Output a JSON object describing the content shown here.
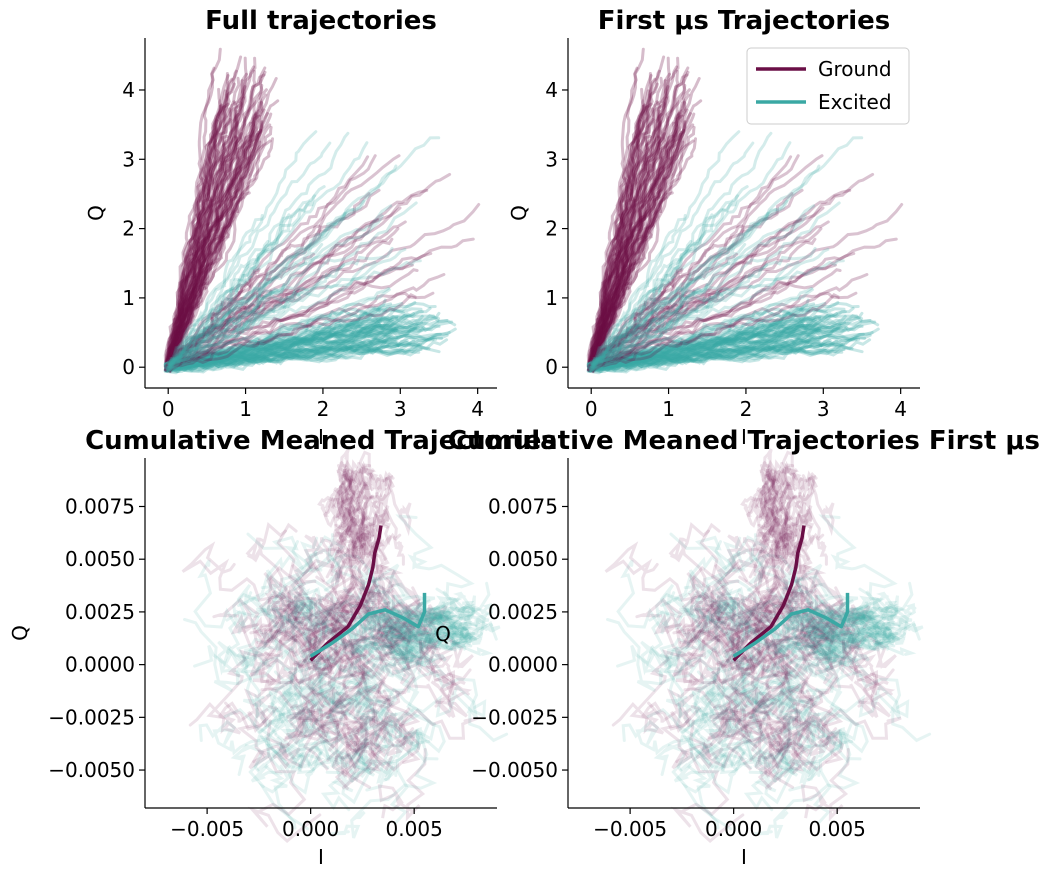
{
  "colors": {
    "ground": "#6a0f46",
    "excited": "#3aa8a4"
  },
  "legend": [
    {
      "label": "Ground",
      "color": "#6a0f46"
    },
    {
      "label": "Excited",
      "color": "#3aa8a4"
    }
  ],
  "chart_data": [
    {
      "type": "line",
      "title": "Full trajectories",
      "xlabel": "I",
      "ylabel": "Q",
      "xlim": [
        -0.3,
        4.25
      ],
      "ylim": [
        -0.3,
        4.75
      ],
      "xticks": [
        0,
        1,
        2,
        3,
        4
      ],
      "yticks": [
        0,
        1,
        2,
        3,
        4
      ],
      "xtick_labels": [
        "0",
        "1",
        "2",
        "3",
        "4"
      ],
      "ytick_labels": [
        "0",
        "1",
        "2",
        "3",
        "4"
      ],
      "grid": false,
      "series": [
        {
          "group": "ground_bundle",
          "description_free": true,
          "approx_endpoints_range": {
            "i": [
              0.6,
              1.4
            ],
            "q": [
              3.5,
              4.5
            ]
          }
        },
        {
          "group": "excited_bundle",
          "approx_endpoints_range": {
            "i": [
              2.8,
              3.7
            ],
            "q": [
              0.3,
              1.0
            ]
          }
        }
      ]
    },
    {
      "type": "line",
      "title": "First μs Trajectories",
      "xlabel": "I",
      "ylabel": "Q",
      "xlim": [
        -0.3,
        4.25
      ],
      "ylim": [
        -0.3,
        4.75
      ],
      "xticks": [
        0,
        1,
        2,
        3,
        4
      ],
      "yticks": [
        0,
        1,
        2,
        3,
        4
      ],
      "xtick_labels": [
        "0",
        "1",
        "2",
        "3",
        "4"
      ],
      "ytick_labels": [
        "0",
        "1",
        "2",
        "3",
        "4"
      ],
      "grid": false,
      "legend_placement": "top-right"
    },
    {
      "type": "line",
      "title": "Cumulative Meaned Trajectories",
      "xlabel": "I",
      "ylabel": "Q",
      "xlim": [
        -0.008,
        0.009
      ],
      "ylim": [
        -0.0068,
        0.0098
      ],
      "xticks": [
        -0.005,
        0.0,
        0.005
      ],
      "yticks": [
        -0.005,
        -0.0025,
        0.0,
        0.0025,
        0.005,
        0.0075
      ],
      "xtick_labels": [
        "−0.005",
        "0.000",
        "0.005"
      ],
      "ytick_labels": [
        "−0.0050",
        "−0.0025",
        "0.0000",
        "0.0025",
        "0.0050",
        "0.0075"
      ],
      "grid": false,
      "mean_ground": {
        "i": [
          0.0,
          0.0008,
          0.0018,
          0.0024,
          0.0028,
          0.003,
          0.0031,
          0.0033,
          0.0034
        ],
        "q": [
          0.0002,
          0.001,
          0.0018,
          0.0028,
          0.0038,
          0.0046,
          0.0053,
          0.006,
          0.0066
        ]
      },
      "mean_excited": {
        "i": [
          0.0,
          0.001,
          0.002,
          0.0028,
          0.0036,
          0.0045,
          0.0052,
          0.0055,
          0.0055
        ],
        "q": [
          0.0004,
          0.001,
          0.0017,
          0.0024,
          0.0026,
          0.0022,
          0.0018,
          0.0025,
          0.0034
        ]
      }
    },
    {
      "type": "line",
      "title": "Cumulative Meaned Trajectories First μs",
      "xlabel": "I",
      "ylabel": "",
      "xlim": [
        -0.008,
        0.009
      ],
      "ylim": [
        -0.0068,
        0.0098
      ],
      "xticks": [
        -0.005,
        0.0,
        0.005
      ],
      "yticks": [
        -0.005,
        -0.0025,
        0.0,
        0.0025,
        0.005,
        0.0075
      ],
      "xtick_labels": [
        "−0.005",
        "0.000",
        "0.005"
      ],
      "ytick_labels": [
        "−0.0050",
        "−0.0025",
        "0.0000",
        "0.0025",
        "0.0050",
        "0.0075"
      ],
      "grid": false
    }
  ],
  "overlay_label": "Q"
}
